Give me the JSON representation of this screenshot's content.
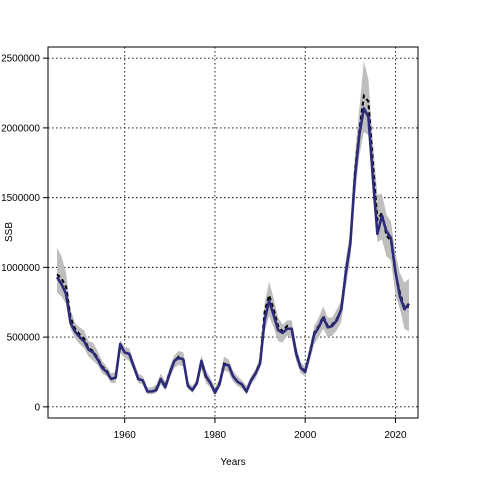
{
  "chart_data": {
    "type": "line",
    "title": "",
    "xlabel": "Years",
    "ylabel": "SSB",
    "xlim": [
      1943,
      2025
    ],
    "ylim": [
      -80000,
      2580000
    ],
    "x_ticks": [
      1960,
      1980,
      2000,
      2020
    ],
    "x_tick_labels": [
      "1960",
      "1980",
      "2000",
      "2020"
    ],
    "y_ticks": [
      0,
      500000,
      1000000,
      1500000,
      2000000,
      2500000
    ],
    "y_tick_labels": [
      "0",
      "500000",
      "1000000",
      "1500000",
      "2000000",
      "2500000"
    ],
    "grid": true,
    "colors": {
      "band": "#bebebe",
      "dashed_line": "#000000",
      "main_line": "#2e2a7a"
    },
    "x": [
      1945,
      1946,
      1947,
      1948,
      1949,
      1950,
      1951,
      1952,
      1953,
      1954,
      1955,
      1956,
      1957,
      1958,
      1959,
      1960,
      1961,
      1962,
      1963,
      1964,
      1965,
      1966,
      1967,
      1968,
      1969,
      1970,
      1971,
      1972,
      1973,
      1974,
      1975,
      1976,
      1977,
      1978,
      1979,
      1980,
      1981,
      1982,
      1983,
      1984,
      1985,
      1986,
      1987,
      1988,
      1989,
      1990,
      1991,
      1992,
      1993,
      1994,
      1995,
      1996,
      1997,
      1998,
      1999,
      2000,
      2001,
      2002,
      2003,
      2004,
      2005,
      2006,
      2007,
      2008,
      2009,
      2010,
      2011,
      2012,
      2013,
      2014,
      2015,
      2016,
      2017,
      2018,
      2019,
      2020,
      2021,
      2022,
      2023
    ],
    "series": [
      {
        "style": "band",
        "upper": [
          1140000,
          1080000,
          960000,
          700000,
          600000,
          570000,
          550000,
          470000,
          460000,
          400000,
          330000,
          290000,
          240000,
          250000,
          480000,
          430000,
          420000,
          330000,
          240000,
          220000,
          140000,
          140000,
          160000,
          240000,
          180000,
          290000,
          370000,
          400000,
          390000,
          180000,
          150000,
          200000,
          370000,
          260000,
          210000,
          140000,
          200000,
          360000,
          340000,
          260000,
          220000,
          190000,
          150000,
          220000,
          270000,
          360000,
          740000,
          900000,
          780000,
          640000,
          590000,
          620000,
          620000,
          440000,
          320000,
          290000,
          420000,
          580000,
          640000,
          720000,
          640000,
          640000,
          700000,
          760000,
          1060000,
          1260000,
          1800000,
          2140000,
          2480000,
          2350000,
          1900000,
          1520000,
          1530000,
          1380000,
          1330000,
          1100000,
          960000,
          890000,
          920000
        ]
      },
      {
        "style": "band",
        "lower": [
          820000,
          790000,
          740000,
          560000,
          490000,
          450000,
          420000,
          360000,
          330000,
          300000,
          240000,
          220000,
          170000,
          170000,
          390000,
          350000,
          330000,
          260000,
          170000,
          160000,
          90000,
          90000,
          100000,
          160000,
          120000,
          210000,
          280000,
          300000,
          290000,
          130000,
          100000,
          150000,
          270000,
          170000,
          140000,
          90000,
          140000,
          260000,
          250000,
          180000,
          150000,
          130000,
          90000,
          160000,
          200000,
          280000,
          540000,
          650000,
          570000,
          470000,
          460000,
          510000,
          490000,
          330000,
          240000,
          220000,
          330000,
          450000,
          500000,
          560000,
          500000,
          510000,
          550000,
          610000,
          860000,
          1060000,
          1500000,
          1800000,
          1970000,
          1950000,
          1650000,
          1180000,
          1200000,
          1080000,
          1050000,
          800000,
          700000,
          560000,
          540000
        ]
      },
      {
        "style": "dashed",
        "values": [
          950000,
          920000,
          860000,
          640000,
          560000,
          520000,
          490000,
          420000,
          400000,
          350000,
          290000,
          260000,
          200000,
          210000,
          440000,
          390000,
          380000,
          290000,
          200000,
          190000,
          110000,
          110000,
          130000,
          200000,
          150000,
          250000,
          330000,
          360000,
          340000,
          150000,
          120000,
          170000,
          320000,
          210000,
          170000,
          110000,
          170000,
          310000,
          300000,
          220000,
          180000,
          160000,
          110000,
          190000,
          240000,
          320000,
          680000,
          800000,
          700000,
          580000,
          540000,
          580000,
          560000,
          390000,
          280000,
          260000,
          390000,
          530000,
          580000,
          650000,
          580000,
          590000,
          630000,
          700000,
          980000,
          1170000,
          1680000,
          1980000,
          2230000,
          2190000,
          1750000,
          1340000,
          1390000,
          1230000,
          1190000,
          960000,
          820000,
          710000,
          720000
        ]
      },
      {
        "style": "solid",
        "values": [
          930000,
          880000,
          810000,
          600000,
          540000,
          500000,
          470000,
          410000,
          390000,
          340000,
          280000,
          250000,
          200000,
          210000,
          450000,
          390000,
          380000,
          290000,
          200000,
          190000,
          110000,
          110000,
          120000,
          200000,
          140000,
          240000,
          330000,
          350000,
          340000,
          150000,
          120000,
          170000,
          330000,
          220000,
          170000,
          100000,
          160000,
          300000,
          300000,
          220000,
          180000,
          160000,
          110000,
          190000,
          240000,
          310000,
          620000,
          760000,
          660000,
          550000,
          530000,
          560000,
          560000,
          380000,
          280000,
          250000,
          380000,
          520000,
          570000,
          640000,
          570000,
          580000,
          620000,
          700000,
          960000,
          1170000,
          1640000,
          1950000,
          2140000,
          2080000,
          1640000,
          1240000,
          1370000,
          1260000,
          1210000,
          970000,
          790000,
          700000,
          740000
        ]
      }
    ]
  }
}
